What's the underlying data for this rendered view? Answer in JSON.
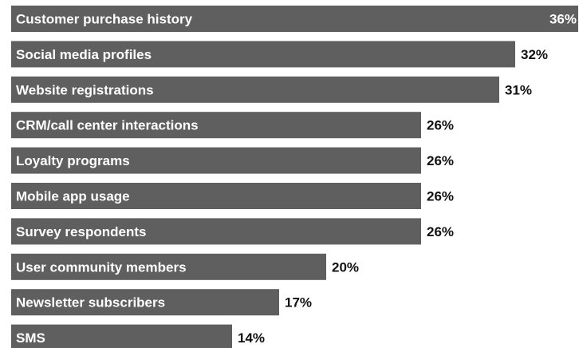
{
  "chart_data": {
    "type": "bar",
    "orientation": "horizontal",
    "categories": [
      "Customer purchase history",
      "Social media profiles",
      "Website registrations",
      "CRM/call center interactions",
      "Loyalty programs",
      "Mobile app usage",
      "Survey respondents",
      "User community members",
      "Newsletter subscribers",
      "SMS"
    ],
    "values": [
      36,
      32,
      31,
      26,
      26,
      26,
      26,
      20,
      17,
      14
    ],
    "value_labels": [
      "36%",
      "32%",
      "31%",
      "26%",
      "26%",
      "26%",
      "26%",
      "20%",
      "17%",
      "14%"
    ],
    "unit": "%",
    "xlim": [
      0,
      36
    ],
    "grid": false,
    "legend": "none",
    "bar_color": "#5f5f5f",
    "label_color": "#ffffff",
    "value_color": "#111111"
  }
}
